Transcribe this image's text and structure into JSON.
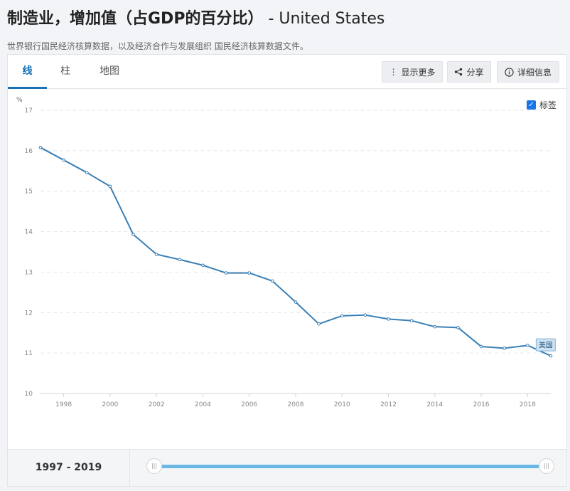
{
  "header": {
    "title": "制造业，增加值（占GDP的百分比）",
    "country_suffix": " - United States",
    "source": "世界银行国民经济核算数据，以及经济合作与发展组织 国民经济核算数据文件。"
  },
  "tabs": [
    {
      "label": "线",
      "active": true
    },
    {
      "label": "柱",
      "active": false
    },
    {
      "label": "地图",
      "active": false
    }
  ],
  "toolbar": {
    "show_more": {
      "label": "显示更多",
      "icon": "vertical-ellipsis-icon"
    },
    "share": {
      "label": "分享",
      "icon": "share-icon"
    },
    "details": {
      "label": "详细信息",
      "icon": "info-icon"
    }
  },
  "label_toggle": {
    "label": "标签",
    "checked": true
  },
  "range": {
    "start": "1997",
    "end": "2019",
    "text": "1997 - 2019"
  },
  "colors": {
    "line": "#3a7fb5",
    "accent": "#1a73b8",
    "slider": "#6ab7e6"
  },
  "chart_data": {
    "type": "line",
    "ylabel": "%",
    "ylim": [
      10,
      17
    ],
    "yticks": [
      10,
      11,
      12,
      13,
      14,
      15,
      16,
      17
    ],
    "xlim": [
      1997,
      2019
    ],
    "xticks": [
      1998,
      2000,
      2002,
      2004,
      2006,
      2008,
      2010,
      2012,
      2014,
      2016,
      2018
    ],
    "grid": true,
    "series": [
      {
        "name": "美国",
        "x": [
          1997,
          1998,
          1999,
          2000,
          2001,
          2002,
          2003,
          2004,
          2005,
          2006,
          2007,
          2008,
          2009,
          2010,
          2011,
          2012,
          2013,
          2014,
          2015,
          2016,
          2017,
          2018,
          2019
        ],
        "values": [
          16.08,
          15.77,
          15.46,
          15.12,
          13.93,
          13.44,
          13.31,
          13.17,
          12.98,
          12.98,
          12.78,
          12.26,
          11.72,
          11.92,
          11.94,
          11.84,
          11.8,
          11.65,
          11.63,
          11.16,
          11.12,
          11.19,
          10.93
        ]
      }
    ]
  }
}
